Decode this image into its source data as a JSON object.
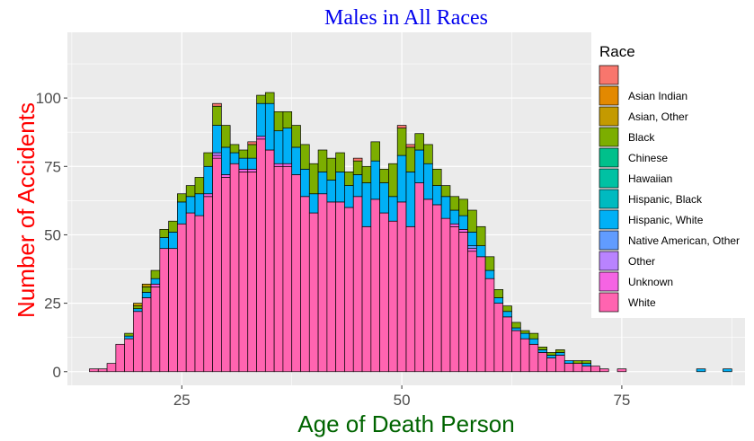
{
  "chart_data": {
    "type": "bar",
    "stacked": true,
    "title": "Males in All Races",
    "xlabel": "Age of Death Person",
    "ylabel": "Number of Accidents",
    "xlim": [
      12,
      89
    ],
    "ylim": [
      -5,
      124
    ],
    "x_ticks": [
      25,
      50,
      75
    ],
    "y_ticks": [
      0,
      25,
      50,
      75,
      100
    ],
    "grid": true,
    "legend_position": "right",
    "legend_title": "Race",
    "bin_width": 1,
    "x": [
      15,
      16,
      17,
      18,
      19,
      20,
      21,
      22,
      23,
      24,
      25,
      26,
      27,
      28,
      29,
      30,
      31,
      32,
      33,
      34,
      35,
      36,
      37,
      38,
      39,
      40,
      41,
      42,
      43,
      44,
      45,
      46,
      47,
      48,
      49,
      50,
      51,
      52,
      53,
      54,
      55,
      56,
      57,
      58,
      59,
      60,
      61,
      62,
      63,
      64,
      65,
      66,
      67,
      68,
      69,
      70,
      71,
      72,
      73,
      74,
      75,
      76,
      77,
      78,
      79,
      80,
      81,
      82,
      83,
      84,
      85,
      86,
      87
    ],
    "series": [
      {
        "name": "",
        "color": "#F8766D",
        "values": [
          0,
          0,
          0,
          0,
          0,
          0,
          0,
          0,
          0,
          0,
          0,
          0,
          0,
          0,
          1,
          0,
          0,
          0,
          1,
          0,
          0,
          0,
          0,
          0,
          0,
          0,
          0,
          0,
          0,
          0,
          1,
          0,
          0,
          0,
          0,
          1,
          1,
          0,
          0,
          0,
          0,
          0,
          0,
          0,
          0,
          0,
          0,
          0,
          0,
          0,
          0,
          0,
          0,
          0,
          0,
          0,
          0,
          0,
          0,
          0,
          0,
          0,
          0,
          0,
          0,
          0,
          0,
          0,
          0,
          0,
          0,
          0,
          0
        ]
      },
      {
        "name": "Asian Indian",
        "color": "#E38900",
        "values": [
          0,
          0,
          0,
          0,
          0,
          0,
          0,
          0,
          0,
          0,
          0,
          0,
          0,
          0,
          0,
          0,
          0,
          0,
          0,
          0,
          0,
          0,
          0,
          0,
          0,
          0,
          0,
          0,
          0,
          0,
          0,
          0,
          0,
          0,
          0,
          0,
          0,
          0,
          0,
          0,
          0,
          0,
          0,
          0,
          0,
          0,
          0,
          0,
          0,
          0,
          0,
          0,
          0,
          0,
          0,
          0,
          0,
          0,
          0,
          0,
          0,
          0,
          0,
          0,
          0,
          0,
          0,
          0,
          0,
          0,
          0,
          0,
          0
        ]
      },
      {
        "name": "Asian, Other",
        "color": "#C49A00",
        "values": [
          0,
          0,
          0,
          0,
          0,
          1,
          1,
          0,
          0,
          0,
          0,
          0,
          0,
          0,
          0,
          0,
          0,
          0,
          0,
          0,
          0,
          0,
          0,
          0,
          0,
          0,
          0,
          0,
          0,
          0,
          0,
          0,
          0,
          0,
          0,
          0,
          0,
          0,
          0,
          0,
          0,
          0,
          0,
          0,
          0,
          0,
          0,
          0,
          0,
          0,
          0,
          0,
          0,
          0,
          0,
          0,
          0,
          0,
          0,
          0,
          0,
          0,
          0,
          0,
          0,
          0,
          0,
          0,
          0,
          0,
          0,
          0,
          0
        ]
      },
      {
        "name": "Black",
        "color": "#7CAE00",
        "values": [
          0,
          0,
          0,
          0,
          1,
          1,
          2,
          3,
          3,
          4,
          3,
          4,
          6,
          5,
          7,
          8,
          3,
          3,
          5,
          3,
          4,
          7,
          6,
          8,
          9,
          11,
          8,
          8,
          7,
          5,
          5,
          6,
          7,
          5,
          12,
          10,
          9,
          6,
          7,
          6,
          4,
          5,
          6,
          8,
          7,
          5,
          3,
          2,
          2,
          1,
          2,
          1,
          1,
          1,
          0,
          1,
          1,
          0,
          0,
          0,
          0,
          0,
          0,
          0,
          0,
          0,
          0,
          0,
          0,
          0,
          0,
          0,
          0
        ]
      },
      {
        "name": "Chinese",
        "color": "#00C08B",
        "values": [
          0,
          0,
          0,
          0,
          0,
          0,
          0,
          0,
          0,
          0,
          0,
          0,
          0,
          0,
          0,
          0,
          0,
          0,
          0,
          0,
          0,
          0,
          0,
          0,
          0,
          0,
          0,
          0,
          0,
          0,
          0,
          0,
          0,
          0,
          0,
          0,
          0,
          0,
          0,
          0,
          0,
          0,
          0,
          0,
          0,
          0,
          0,
          0,
          0,
          0,
          0,
          0,
          0,
          0,
          0,
          0,
          0,
          0,
          0,
          0,
          0,
          0,
          0,
          0,
          0,
          0,
          0,
          0,
          0,
          0,
          0,
          0,
          0
        ]
      },
      {
        "name": "Hawaiian",
        "color": "#00C1A3",
        "values": [
          0,
          0,
          0,
          0,
          0,
          0,
          0,
          0,
          0,
          0,
          0,
          0,
          0,
          0,
          0,
          0,
          0,
          0,
          0,
          0,
          0,
          0,
          0,
          0,
          0,
          0,
          0,
          0,
          0,
          0,
          0,
          0,
          0,
          0,
          0,
          0,
          0,
          0,
          0,
          0,
          0,
          0,
          0,
          0,
          0,
          0,
          0,
          0,
          0,
          0,
          0,
          0,
          0,
          0,
          0,
          0,
          0,
          0,
          0,
          0,
          0,
          0,
          0,
          0,
          0,
          0,
          0,
          0,
          0,
          0,
          0,
          0,
          0
        ]
      },
      {
        "name": "Hispanic, Black",
        "color": "#00BAC0",
        "values": [
          0,
          0,
          0,
          0,
          0,
          0,
          0,
          0,
          0,
          0,
          0,
          0,
          0,
          0,
          0,
          0,
          0,
          0,
          0,
          0,
          0,
          0,
          0,
          0,
          0,
          0,
          0,
          0,
          0,
          0,
          0,
          0,
          0,
          0,
          0,
          0,
          0,
          0,
          0,
          0,
          0,
          0,
          0,
          0,
          0,
          0,
          0,
          0,
          0,
          0,
          0,
          0,
          0,
          0,
          0,
          0,
          0,
          0,
          0,
          0,
          0,
          0,
          0,
          0,
          0,
          0,
          0,
          0,
          0,
          0,
          0,
          0,
          0
        ]
      },
      {
        "name": "Hispanic, White",
        "color": "#00B0F6",
        "values": [
          0,
          0,
          0,
          0,
          1,
          1,
          2,
          2,
          4,
          6,
          8,
          6,
          8,
          10,
          10,
          10,
          4,
          4,
          4,
          12,
          17,
          12,
          13,
          10,
          10,
          7,
          8,
          8,
          11,
          8,
          8,
          16,
          14,
          11,
          9,
          17,
          20,
          12,
          13,
          7,
          8,
          5,
          5,
          5,
          4,
          3,
          2,
          2,
          1,
          2,
          2,
          1,
          1,
          1,
          1,
          0,
          1,
          0,
          0,
          0,
          0,
          0,
          0,
          0,
          0,
          0,
          0,
          0,
          0,
          1,
          0,
          0,
          1
        ]
      },
      {
        "name": "Native American, Other",
        "color": "#619CFF",
        "values": [
          0,
          0,
          0,
          0,
          0,
          0,
          0,
          0,
          0,
          0,
          0,
          0,
          0,
          0,
          0,
          0,
          0,
          0,
          0,
          0,
          0,
          0,
          0,
          0,
          0,
          0,
          0,
          0,
          0,
          0,
          0,
          0,
          0,
          0,
          0,
          0,
          0,
          0,
          0,
          0,
          0,
          0,
          0,
          1,
          0,
          0,
          0,
          0,
          0,
          0,
          0,
          0,
          0,
          0,
          0,
          0,
          0,
          0,
          0,
          0,
          0,
          0,
          0,
          0,
          0,
          0,
          0,
          0,
          0,
          0,
          0,
          0,
          0
        ]
      },
      {
        "name": "Other",
        "color": "#B983FF",
        "values": [
          0,
          0,
          0,
          0,
          0,
          0,
          0,
          0,
          0,
          0,
          0,
          0,
          0,
          0,
          1,
          0,
          0,
          0,
          0,
          0,
          0,
          0,
          0,
          0,
          0,
          0,
          0,
          0,
          0,
          0,
          0,
          0,
          0,
          0,
          0,
          0,
          0,
          0,
          0,
          0,
          0,
          0,
          0,
          0,
          0,
          0,
          0,
          0,
          0,
          0,
          0,
          0,
          0,
          0,
          0,
          0,
          0,
          0,
          0,
          0,
          0,
          0,
          0,
          0,
          0,
          0,
          0,
          0,
          0,
          0,
          0,
          0,
          0
        ]
      },
      {
        "name": "Unknown",
        "color": "#F564E3",
        "values": [
          0,
          0,
          0,
          0,
          0,
          0,
          0,
          1,
          0,
          0,
          0,
          0,
          0,
          1,
          1,
          1,
          0,
          1,
          1,
          1,
          0,
          1,
          1,
          0,
          0,
          0,
          0,
          0,
          0,
          0,
          0,
          0,
          0,
          0,
          0,
          0,
          0,
          0,
          0,
          0,
          0,
          1,
          1,
          1,
          0,
          0,
          0,
          0,
          0,
          0,
          0,
          0,
          0,
          0,
          0,
          0,
          0,
          0,
          0,
          0,
          0,
          0,
          0,
          0,
          0,
          0,
          0,
          0,
          0,
          0,
          0,
          0,
          0
        ]
      },
      {
        "name": "White",
        "color": "#FF64B0",
        "values": [
          1,
          1,
          3,
          10,
          12,
          22,
          27,
          31,
          45,
          45,
          54,
          58,
          57,
          64,
          78,
          71,
          76,
          73,
          73,
          85,
          81,
          75,
          75,
          72,
          64,
          58,
          65,
          62,
          62,
          60,
          64,
          53,
          63,
          58,
          55,
          62,
          53,
          69,
          63,
          61,
          56,
          53,
          51,
          44,
          42,
          34,
          25,
          20,
          15,
          12,
          10,
          7,
          5,
          6,
          3,
          3,
          2,
          2,
          1,
          0,
          1,
          0,
          0,
          0,
          0,
          0,
          0,
          0,
          0,
          0,
          0,
          0,
          0
        ]
      }
    ]
  }
}
